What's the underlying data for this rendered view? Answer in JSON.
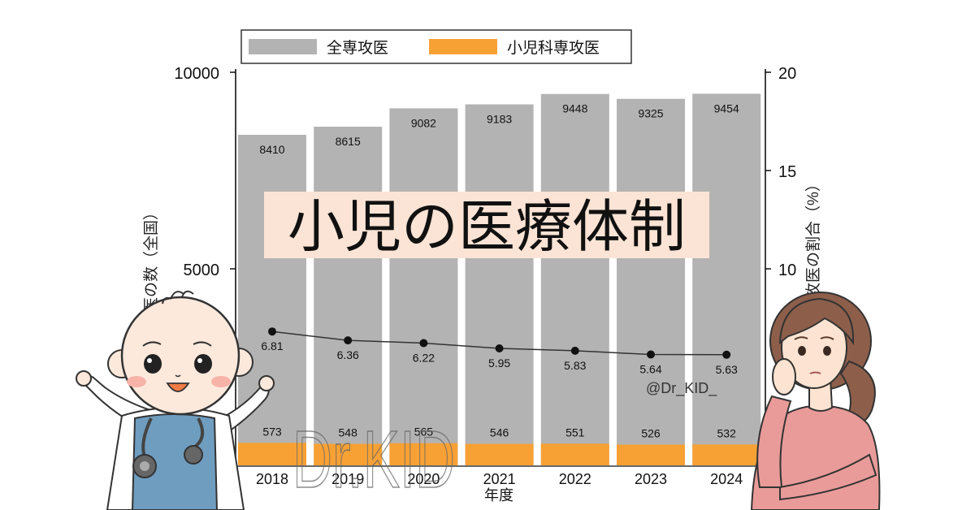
{
  "banner": {
    "title": "小児の医療体制",
    "background": "#fbe4d5"
  },
  "watermark": {
    "handle": "@Dr_KID_",
    "logo": "Dr.KID"
  },
  "chart_data": {
    "type": "bar",
    "categories": [
      "2018",
      "2019",
      "2020",
      "2021",
      "2022",
      "2023",
      "2024"
    ],
    "series": [
      {
        "name": "全専攻医",
        "values": [
          8410,
          8615,
          9082,
          9183,
          9448,
          9325,
          9454
        ],
        "color": "#b3b3b3",
        "axis": "left"
      },
      {
        "name": "小児科専攻医",
        "values": [
          573,
          548,
          565,
          546,
          551,
          526,
          532
        ],
        "color": "#f7a135",
        "axis": "left"
      },
      {
        "type": "line",
        "values": [
          6.81,
          6.36,
          6.22,
          5.95,
          5.83,
          5.64,
          5.63
        ],
        "color": "#333333",
        "axis": "right"
      }
    ],
    "xlabel": "年度",
    "ylabel": "攻医の数（全国）",
    "y2label": "攻医の割合（%）",
    "ylim": [
      0,
      10000
    ],
    "y2lim": [
      0,
      20
    ],
    "yticks": [
      5000,
      10000
    ],
    "y2ticks": [
      10,
      15,
      20
    ],
    "legend": "top",
    "grid": false
  }
}
